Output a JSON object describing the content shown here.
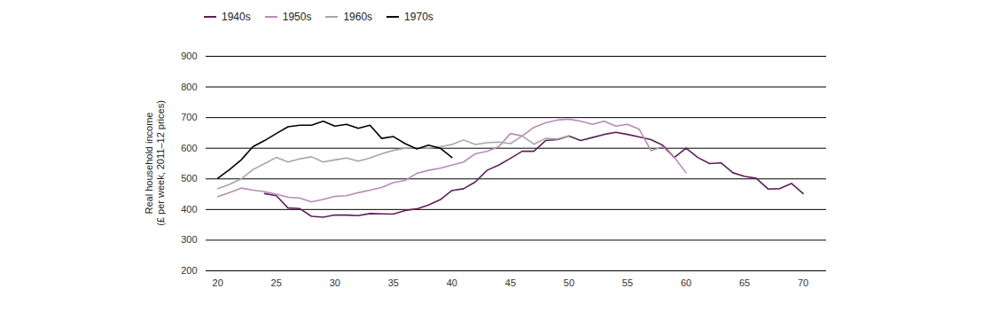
{
  "chart_data": {
    "type": "line",
    "ylabel": "Real household income (£ per week, 2011–12 prices)",
    "x": [
      20,
      21,
      22,
      23,
      24,
      25,
      26,
      27,
      28,
      29,
      30,
      31,
      32,
      33,
      34,
      35,
      36,
      37,
      38,
      39,
      40,
      41,
      42,
      43,
      44,
      45,
      46,
      47,
      48,
      49,
      50,
      51,
      52,
      53,
      54,
      55,
      56,
      57,
      58,
      59,
      60,
      61,
      62,
      63,
      64,
      65,
      66,
      67,
      68,
      69,
      70
    ],
    "series": [
      {
        "name": "1940s",
        "color": "#5e1f58",
        "values": [
          null,
          null,
          null,
          null,
          452,
          445,
          405,
          403,
          378,
          375,
          382,
          382,
          380,
          387,
          386,
          385,
          397,
          402,
          415,
          432,
          462,
          468,
          490,
          528,
          545,
          567,
          590,
          590,
          625,
          628,
          640,
          625,
          635,
          645,
          652,
          645,
          637,
          628,
          610,
          570,
          600,
          570,
          550,
          552,
          520,
          508,
          502,
          467,
          468,
          485,
          452
        ]
      },
      {
        "name": "1950s",
        "color": "#b98ab6",
        "values": [
          442,
          455,
          470,
          463,
          458,
          450,
          440,
          437,
          425,
          433,
          443,
          445,
          455,
          463,
          472,
          488,
          495,
          518,
          528,
          535,
          545,
          555,
          582,
          590,
          605,
          648,
          640,
          668,
          683,
          692,
          695,
          688,
          678,
          688,
          672,
          678,
          662,
          592,
          605,
          570,
          520,
          null,
          null,
          null,
          null,
          null,
          null,
          null,
          null,
          null,
          null
        ]
      },
      {
        "name": "1960s",
        "color": "#a6a6a6",
        "values": [
          468,
          482,
          500,
          530,
          550,
          570,
          555,
          565,
          572,
          555,
          562,
          568,
          558,
          568,
          582,
          593,
          600,
          602,
          600,
          605,
          612,
          627,
          612,
          618,
          620,
          615,
          640,
          613,
          632,
          630,
          640,
          null,
          null,
          null,
          null,
          null,
          null,
          null,
          null,
          null,
          null,
          null,
          null,
          null,
          null,
          null,
          null,
          null,
          null,
          null,
          null
        ]
      },
      {
        "name": "1970s",
        "color": "#000000",
        "values": [
          502,
          530,
          562,
          605,
          625,
          648,
          670,
          675,
          675,
          688,
          672,
          678,
          665,
          675,
          632,
          638,
          615,
          598,
          610,
          600,
          570,
          null,
          null,
          null,
          null,
          null,
          null,
          null,
          null,
          null,
          null,
          null,
          null,
          null,
          null,
          null,
          null,
          null,
          null,
          null,
          null,
          null,
          null,
          null,
          null,
          null,
          null,
          null,
          null,
          null,
          null
        ]
      }
    ],
    "xlim": [
      19,
      72
    ],
    "xticks": [
      20,
      25,
      30,
      35,
      40,
      45,
      50,
      55,
      60,
      65,
      70
    ],
    "ylim": [
      200,
      900
    ],
    "yticks": [
      200,
      300,
      400,
      500,
      600,
      700,
      800,
      900
    ],
    "grid": true,
    "legend": "top-left"
  }
}
